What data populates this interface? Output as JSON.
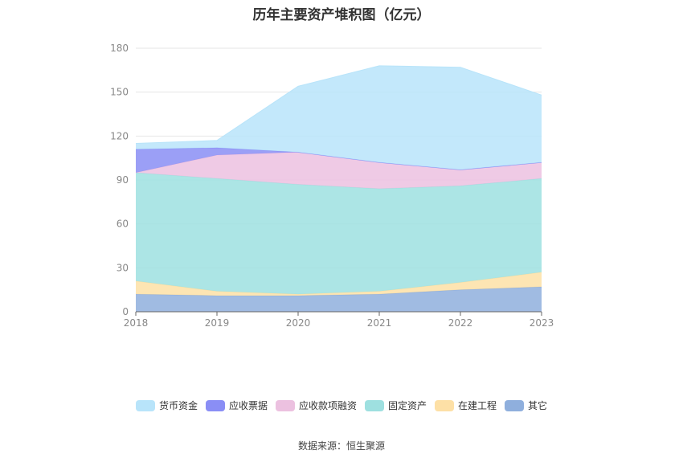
{
  "chart_data": {
    "type": "area",
    "title": "历年主要资产堆积图（亿元）",
    "categories": [
      "2018",
      "2019",
      "2020",
      "2021",
      "2022",
      "2023"
    ],
    "ylim": [
      0,
      180
    ],
    "yticks": [
      0,
      30,
      60,
      90,
      120,
      150,
      180
    ],
    "grid": true,
    "legend_position": "bottom",
    "series": [
      {
        "name": "其它",
        "color": "#8fafdd",
        "values": [
          12,
          11,
          11,
          12,
          15,
          17
        ]
      },
      {
        "name": "在建工程",
        "color": "#fde0a6",
        "values": [
          9,
          3,
          1,
          2,
          5,
          10
        ]
      },
      {
        "name": "固定资产",
        "color": "#9ee0e0",
        "values": [
          74,
          77,
          75,
          70,
          66,
          64
        ]
      },
      {
        "name": "应收款项融资",
        "color": "#ecc1e0",
        "values": [
          0,
          16,
          22,
          18,
          11,
          11
        ]
      },
      {
        "name": "应收票据",
        "color": "#8a8ef5",
        "values": [
          16,
          5,
          0,
          0,
          0,
          0
        ]
      },
      {
        "name": "货币资金",
        "color": "#b8e4fa",
        "values": [
          4,
          5,
          45,
          66,
          70,
          46
        ]
      }
    ],
    "legend_order": [
      "货币资金",
      "应收票据",
      "应收款项融资",
      "固定资产",
      "在建工程",
      "其它"
    ]
  },
  "source": "数据来源：恒生聚源"
}
